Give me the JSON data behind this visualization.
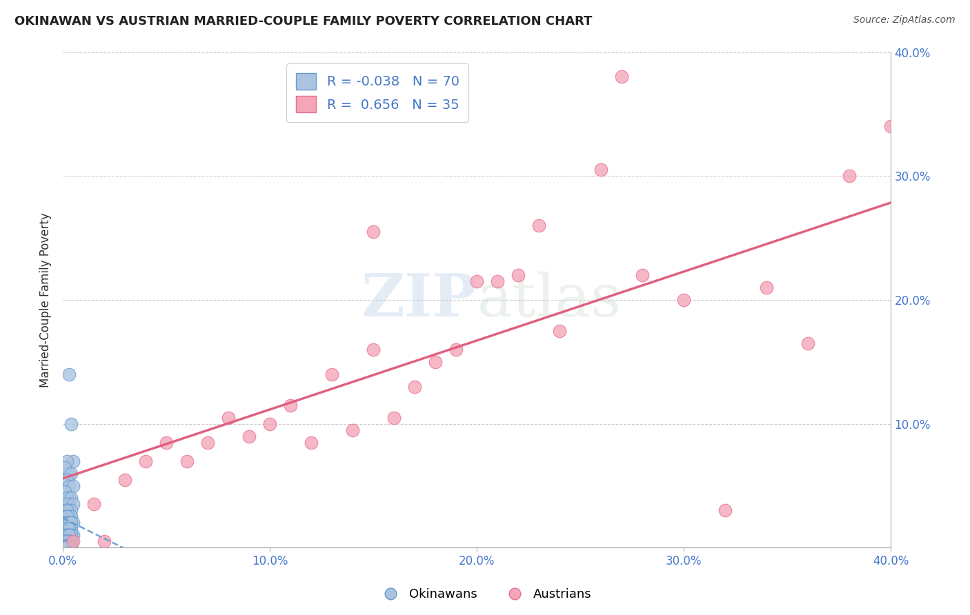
{
  "title": "OKINAWAN VS AUSTRIAN MARRIED-COUPLE FAMILY POVERTY CORRELATION CHART",
  "source": "Source: ZipAtlas.com",
  "ylabel": "Married-Couple Family Poverty",
  "xlim": [
    0.0,
    0.4
  ],
  "ylim": [
    0.0,
    0.4
  ],
  "xtick_values": [
    0.0,
    0.1,
    0.2,
    0.3,
    0.4
  ],
  "xtick_labels": [
    "0.0%",
    "10.0%",
    "20.0%",
    "30.0%",
    "40.0%"
  ],
  "ytick_values": [
    0.0,
    0.1,
    0.2,
    0.3,
    0.4
  ],
  "ytick_right_labels": [
    "",
    "10.0%",
    "20.0%",
    "30.0%",
    "40.0%"
  ],
  "watermark_text": "ZIPatlas",
  "okinawan_color": "#aac4e0",
  "austrian_color": "#f4a5b8",
  "okinawan_edge": "#6699cc",
  "austrian_edge": "#e87090",
  "R_okinawan": -0.038,
  "N_okinawan": 70,
  "R_austrian": 0.656,
  "N_austrian": 35,
  "okinawan_x": [
    0.003,
    0.004,
    0.005,
    0.002,
    0.003,
    0.001,
    0.004,
    0.002,
    0.003,
    0.005,
    0.001,
    0.003,
    0.002,
    0.004,
    0.003,
    0.002,
    0.005,
    0.001,
    0.003,
    0.004,
    0.002,
    0.003,
    0.001,
    0.004,
    0.002,
    0.003,
    0.005,
    0.001,
    0.002,
    0.003,
    0.004,
    0.002,
    0.003,
    0.001,
    0.004,
    0.003,
    0.002,
    0.005,
    0.001,
    0.003,
    0.002,
    0.004,
    0.003,
    0.001,
    0.002,
    0.003,
    0.004,
    0.002,
    0.001,
    0.003,
    0.002,
    0.004,
    0.003,
    0.001,
    0.002,
    0.003,
    0.001,
    0.002,
    0.003,
    0.001,
    0.002,
    0.001,
    0.002,
    0.003,
    0.001,
    0.002,
    0.001,
    0.003,
    0.002,
    0.001
  ],
  "okinawan_y": [
    0.14,
    0.1,
    0.07,
    0.07,
    0.06,
    0.065,
    0.06,
    0.055,
    0.05,
    0.05,
    0.045,
    0.04,
    0.04,
    0.04,
    0.035,
    0.035,
    0.035,
    0.03,
    0.03,
    0.03,
    0.03,
    0.025,
    0.025,
    0.025,
    0.025,
    0.02,
    0.02,
    0.02,
    0.02,
    0.02,
    0.02,
    0.015,
    0.015,
    0.015,
    0.015,
    0.015,
    0.01,
    0.01,
    0.01,
    0.01,
    0.01,
    0.01,
    0.01,
    0.005,
    0.005,
    0.005,
    0.005,
    0.005,
    0.005,
    0.005,
    0.005,
    0.002,
    0.002,
    0.002,
    0.002,
    0.002,
    0.0,
    0.0,
    0.0,
    0.0,
    0.0,
    0.0,
    0.0,
    0.0,
    0.0,
    0.0,
    0.0,
    0.0,
    0.0,
    0.0
  ],
  "austrian_x": [
    0.005,
    0.015,
    0.02,
    0.03,
    0.04,
    0.05,
    0.06,
    0.07,
    0.08,
    0.09,
    0.1,
    0.11,
    0.12,
    0.13,
    0.14,
    0.15,
    0.16,
    0.17,
    0.18,
    0.19,
    0.2,
    0.21,
    0.22,
    0.23,
    0.24,
    0.26,
    0.28,
    0.3,
    0.32,
    0.34,
    0.36,
    0.38,
    0.4,
    0.27,
    0.15
  ],
  "austrian_y": [
    0.005,
    0.035,
    0.005,
    0.055,
    0.07,
    0.085,
    0.07,
    0.085,
    0.105,
    0.09,
    0.1,
    0.115,
    0.085,
    0.14,
    0.095,
    0.16,
    0.105,
    0.13,
    0.15,
    0.16,
    0.215,
    0.215,
    0.22,
    0.26,
    0.175,
    0.305,
    0.22,
    0.2,
    0.03,
    0.21,
    0.165,
    0.3,
    0.34,
    0.38,
    0.255
  ]
}
